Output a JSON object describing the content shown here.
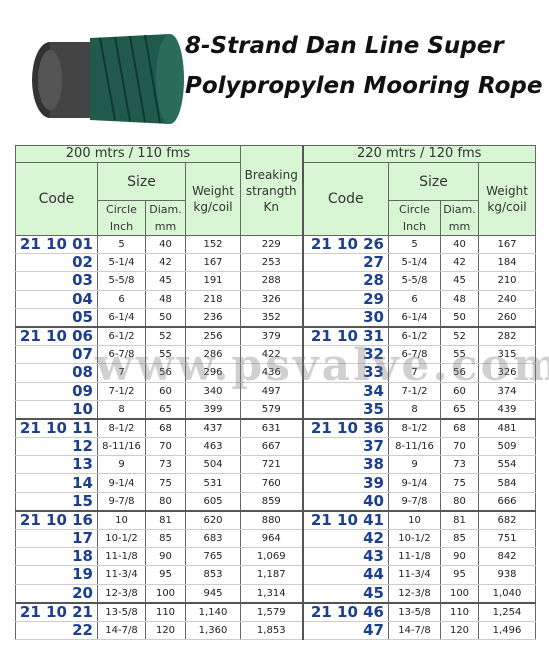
{
  "header": {
    "title_lines": [
      "8-Strand Dan Line Super",
      "Polypropylen Mooring Rope"
    ]
  },
  "watermark": "www.psvalve.com",
  "table": {
    "groups": [
      "200 mtrs / 110 fms",
      "220 mtrs / 120 fms"
    ],
    "code": "Code",
    "size": "Size",
    "weight": [
      "Weight",
      "kg/coil"
    ],
    "breaking": [
      "Breaking",
      "strangth",
      "Kn"
    ],
    "circle": [
      "Circle",
      "Inch"
    ],
    "diam": [
      "Diam.",
      "mm"
    ],
    "rows": [
      [
        "21 10 01",
        "5",
        "40",
        "152",
        "229",
        "21 10 26",
        "5",
        "40",
        "167"
      ],
      [
        "02",
        "5-1/4",
        "42",
        "167",
        "253",
        "27",
        "5-1/4",
        "42",
        "184"
      ],
      [
        "03",
        "5-5/8",
        "45",
        "191",
        "288",
        "28",
        "5-5/8",
        "45",
        "210"
      ],
      [
        "04",
        "6",
        "48",
        "218",
        "326",
        "29",
        "6",
        "48",
        "240"
      ],
      [
        "05",
        "6-1/4",
        "50",
        "236",
        "352",
        "30",
        "6-1/4",
        "50",
        "260"
      ],
      [
        "21 10 06",
        "6-1/2",
        "52",
        "256",
        "379",
        "21 10 31",
        "6-1/2",
        "52",
        "282"
      ],
      [
        "07",
        "6-7/8",
        "55",
        "286",
        "422",
        "32",
        "6-7/8",
        "55",
        "315"
      ],
      [
        "08",
        "7",
        "56",
        "296",
        "436",
        "33",
        "7",
        "56",
        "326"
      ],
      [
        "09",
        "7-1/2",
        "60",
        "340",
        "497",
        "34",
        "7-1/2",
        "60",
        "374"
      ],
      [
        "10",
        "8",
        "65",
        "399",
        "579",
        "35",
        "8",
        "65",
        "439"
      ],
      [
        "21 10 11",
        "8-1/2",
        "68",
        "437",
        "631",
        "21 10 36",
        "8-1/2",
        "68",
        "481"
      ],
      [
        "12",
        "8-11/16",
        "70",
        "463",
        "667",
        "37",
        "8-11/16",
        "70",
        "509"
      ],
      [
        "13",
        "9",
        "73",
        "504",
        "721",
        "38",
        "9",
        "73",
        "554"
      ],
      [
        "14",
        "9-1/4",
        "75",
        "531",
        "760",
        "39",
        "9-1/4",
        "75",
        "584"
      ],
      [
        "15",
        "9-7/8",
        "80",
        "605",
        "859",
        "40",
        "9-7/8",
        "80",
        "666"
      ],
      [
        "21 10 16",
        "10",
        "81",
        "620",
        "880",
        "21 10 41",
        "10",
        "81",
        "682"
      ],
      [
        "17",
        "10-1/2",
        "85",
        "683",
        "964",
        "42",
        "10-1/2",
        "85",
        "751"
      ],
      [
        "18",
        "11-1/8",
        "90",
        "765",
        "1,069",
        "43",
        "11-1/8",
        "90",
        "842"
      ],
      [
        "19",
        "11-3/4",
        "95",
        "853",
        "1,187",
        "44",
        "11-3/4",
        "95",
        "938"
      ],
      [
        "20",
        "12-3/8",
        "100",
        "945",
        "1,314",
        "45",
        "12-3/8",
        "100",
        "1,040"
      ],
      [
        "21 10 21",
        "13-5/8",
        "110",
        "1,140",
        "1,579",
        "21 10 46",
        "13-5/8",
        "110",
        "1,254"
      ],
      [
        "22",
        "14-7/8",
        "120",
        "1,360",
        "1,853",
        "47",
        "14-7/8",
        "120",
        "1,496"
      ]
    ]
  }
}
